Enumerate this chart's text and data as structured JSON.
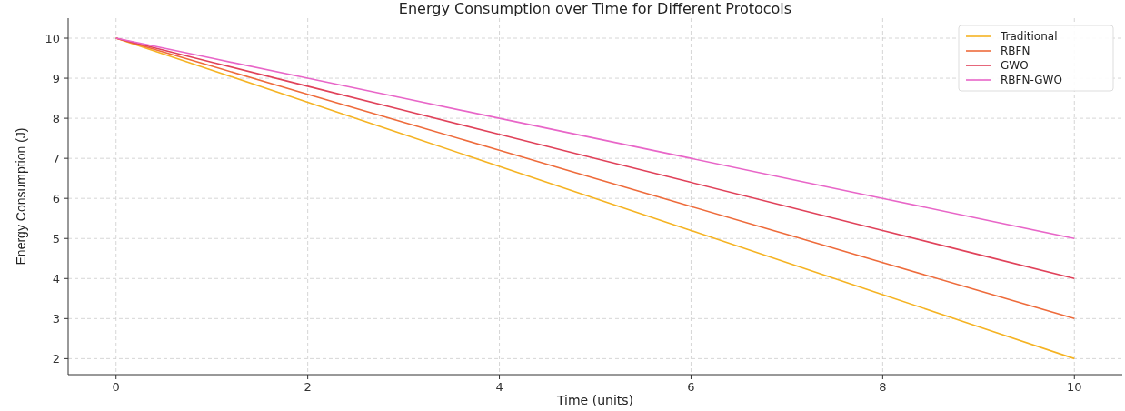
{
  "chart_data": {
    "type": "line",
    "title": "Energy Consumption over Time for Different Protocols",
    "xlabel": "Time (units)",
    "ylabel": "Energy Consumption (J)",
    "x": [
      0,
      1,
      2,
      3,
      4,
      5,
      6,
      7,
      8,
      9,
      10
    ],
    "series": [
      {
        "name": "Traditional",
        "color": "#f5b323",
        "values": [
          10,
          9.2,
          8.4,
          7.6,
          6.8,
          6,
          5.2,
          4.4,
          3.6,
          2.8,
          2
        ]
      },
      {
        "name": "RBFN",
        "color": "#ee6b3b",
        "values": [
          10,
          9.3,
          8.6,
          7.9,
          7.2,
          6.5,
          5.8,
          5.1,
          4.4,
          3.7,
          3
        ]
      },
      {
        "name": "GWO",
        "color": "#e0425a",
        "values": [
          10,
          9.4,
          8.8,
          8.2,
          7.6,
          7,
          6.4,
          5.8,
          5.2,
          4.6,
          4
        ]
      },
      {
        "name": "RBFN-GWO",
        "color": "#e866c8",
        "values": [
          10,
          9.5,
          9,
          8.5,
          8,
          7.5,
          7,
          6.5,
          6,
          5.5,
          5
        ]
      }
    ],
    "xlim": [
      -0.5,
      10.5
    ],
    "xticks": [
      0,
      2,
      4,
      6,
      8,
      10
    ],
    "ylim": [
      1.6,
      10.5
    ],
    "yticks": [
      2,
      3,
      4,
      5,
      6,
      7,
      8,
      9,
      10
    ],
    "grid": true,
    "legend": "top right",
    "line_style": "solid",
    "marker": "none"
  }
}
